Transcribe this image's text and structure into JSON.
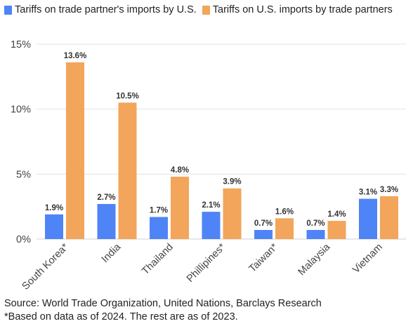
{
  "chart_data": {
    "type": "bar",
    "categories": [
      "South Korea*",
      "India",
      "Thailand",
      "Phillipines*",
      "Taiwan*",
      "Malaysia",
      "Vietnam"
    ],
    "series": [
      {
        "name": "Tariffs on trade partner's imports by U.S.",
        "color": "#4f84f6",
        "values": [
          1.9,
          2.7,
          1.7,
          2.1,
          0.7,
          0.7,
          3.1
        ],
        "labels": [
          "1.9%",
          "2.7%",
          "1.7%",
          "2.1%",
          "0.7%",
          "0.7%",
          "3.1%"
        ]
      },
      {
        "name": "Tariffs on U.S. imports by trade partners",
        "color": "#f2a55b",
        "values": [
          13.6,
          10.5,
          4.8,
          3.9,
          1.6,
          1.4,
          3.3
        ],
        "labels": [
          "13.6%",
          "10.5%",
          "4.8%",
          "3.9%",
          "1.6%",
          "1.4%",
          "3.3%"
        ]
      }
    ],
    "yticks": [
      0,
      5,
      10,
      15
    ],
    "ytick_labels": [
      "0%",
      "5%",
      "10%",
      "15%"
    ],
    "ylim": [
      0,
      15
    ],
    "grid": true,
    "legend_position": "top-left"
  },
  "footer": {
    "source": "Source: World Trade Organization, United Nations, Barclays Research",
    "note": "*Based on data as of 2024. The rest are as of 2023."
  }
}
